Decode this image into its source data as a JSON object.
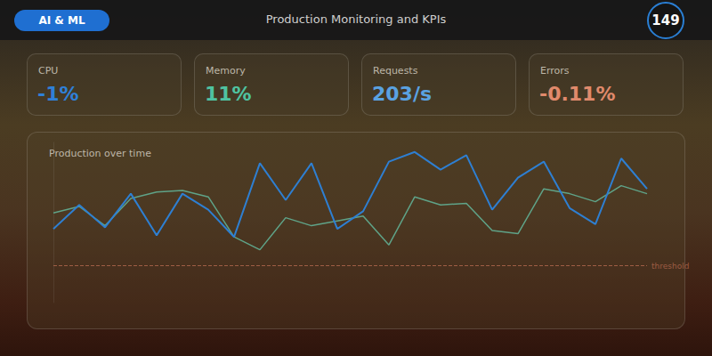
{
  "header": {
    "badge": "AI & ML",
    "title": "Production Monitoring and KPIs",
    "counter": "149"
  },
  "kpis": [
    {
      "label": "CPU",
      "value": "-1%",
      "color": "#2f80d8"
    },
    {
      "label": "Memory",
      "value": "11%",
      "color": "#4fc3a1"
    },
    {
      "label": "Requests",
      "value": "203/s",
      "color": "#5aa2e2"
    },
    {
      "label": "Errors",
      "value": "-0.11%",
      "color": "#e08a6c"
    }
  ],
  "chart_data": {
    "type": "line",
    "title": "Production over time",
    "categories": [
      null,
      null,
      null,
      null,
      null,
      null,
      null,
      null,
      null,
      null,
      null,
      null,
      null,
      null,
      null,
      null,
      null,
      null,
      null,
      null,
      null,
      null,
      null,
      null
    ],
    "series": [
      {
        "color": "#2e7fd2",
        "values": [
          46,
          61,
          47,
          68,
          42,
          68,
          58,
          41,
          87,
          64,
          87,
          46,
          57,
          88,
          94,
          83,
          92,
          58,
          78,
          88,
          59,
          49,
          90,
          71
        ]
      },
      {
        "color": "#5fa388",
        "values": [
          56,
          60,
          48,
          65,
          69,
          70,
          66,
          41,
          33,
          53,
          48,
          51,
          54,
          36,
          66,
          61,
          62,
          45,
          43,
          71,
          68,
          63,
          73,
          68
        ]
      }
    ],
    "ylim": [
      0,
      100
    ],
    "tick_labels": false,
    "grid": false,
    "annotations": [
      {
        "type": "hline",
        "value": 23,
        "label": "threshold",
        "color": "#b5694f",
        "line_style": "dashed"
      }
    ]
  }
}
